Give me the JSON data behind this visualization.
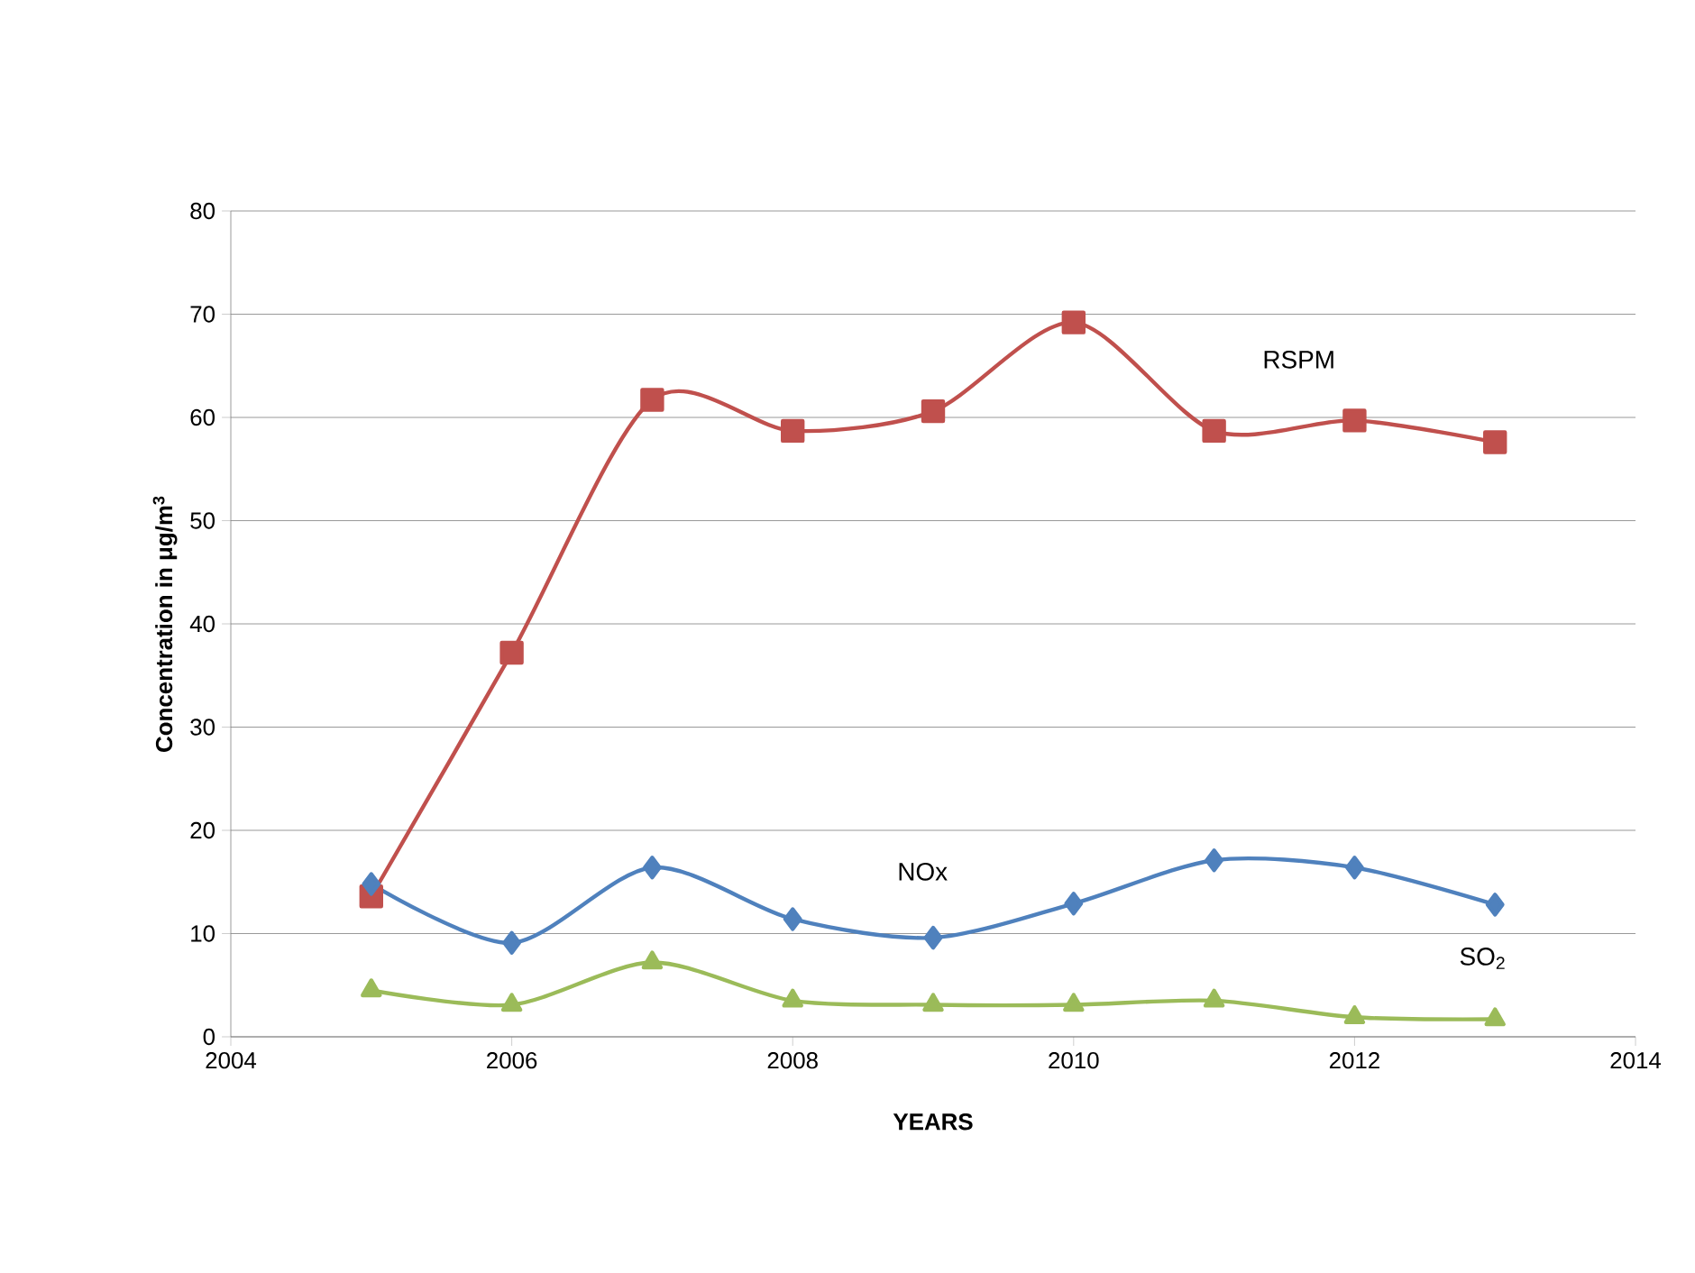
{
  "chart_data": {
    "type": "line",
    "xlabel": "YEARS",
    "ylabel": "Concentration in μg/m$^{3}$",
    "x": [
      2005,
      2006,
      2007,
      2008,
      2009,
      2010,
      2011,
      2012,
      2013
    ],
    "xlim": [
      2004,
      2014
    ],
    "xticks": [
      2004,
      2006,
      2008,
      2010,
      2012,
      2014
    ],
    "ylim": [
      0,
      80
    ],
    "yticks": [
      0,
      10,
      20,
      30,
      40,
      50,
      60,
      70,
      80
    ],
    "grid": "y",
    "legend": false,
    "series": [
      {
        "name": "RSPM",
        "color": "#c0504d",
        "marker": "square",
        "values": [
          13.6,
          37.2,
          61.7,
          58.7,
          60.6,
          69.2,
          58.7,
          59.7,
          57.6
        ]
      },
      {
        "name": "NOx",
        "color": "#4f81bd",
        "marker": "diamond",
        "values": [
          14.8,
          9.1,
          16.4,
          11.4,
          9.6,
          12.9,
          17.1,
          16.4,
          12.8
        ]
      },
      {
        "name": "SO$_{2}$",
        "color": "#9bbb59",
        "marker": "triangle",
        "values": [
          4.5,
          3.1,
          7.2,
          3.5,
          3.1,
          3.1,
          3.5,
          1.9,
          1.7
        ]
      }
    ]
  }
}
